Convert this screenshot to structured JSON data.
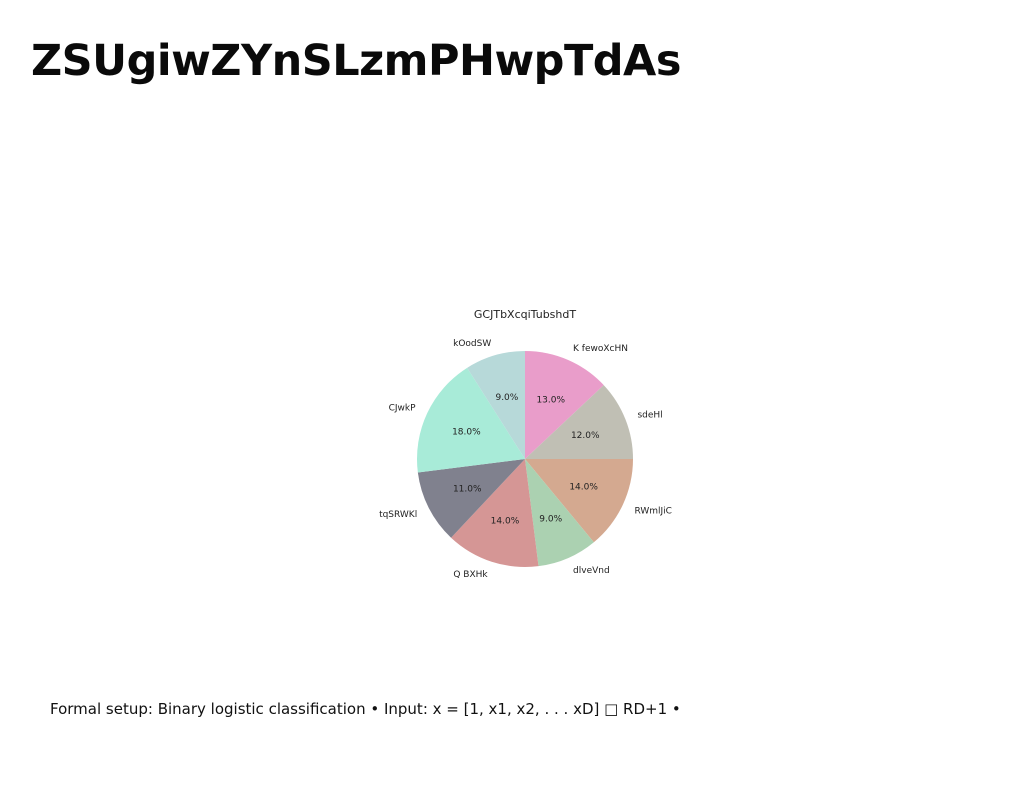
{
  "slide": {
    "title": "ZSUgiwZYnSLzmPHwpTdAs",
    "caption": "Formal setup: Binary logistic classification • Input: x = [1, x1, x2, . . . xD] □ RD+1 •"
  },
  "chart_data": {
    "type": "pie",
    "title": "GCJTbXcqiTubshdT",
    "start_angle_deg": 90,
    "direction": "clockwise",
    "slices": [
      {
        "label": "K fewoXcHN",
        "value": 13.0,
        "pct_text": "13.0%",
        "color": "#e99dca"
      },
      {
        "label": "sdeHl",
        "value": 12.0,
        "pct_text": "12.0%",
        "color": "#c0bfb4"
      },
      {
        "label": "RWmlJiC",
        "value": 14.0,
        "pct_text": "14.0%",
        "color": "#d4a990"
      },
      {
        "label": "dlveVnd",
        "value": 9.0,
        "pct_text": "9.0%",
        "color": "#abd1b1"
      },
      {
        "label": "Q BXHk",
        "value": 14.0,
        "pct_text": "14.0%",
        "color": "#d59695"
      },
      {
        "label": "tqSRWKl",
        "value": 11.0,
        "pct_text": "11.0%",
        "color": "#80818e"
      },
      {
        "label": "CJwkP",
        "value": 18.0,
        "pct_text": "18.0%",
        "color": "#a8ebd8"
      },
      {
        "label": "kOodSW",
        "value": 9.0,
        "pct_text": "9.0%",
        "color": "#b7d9d9"
      }
    ]
  }
}
